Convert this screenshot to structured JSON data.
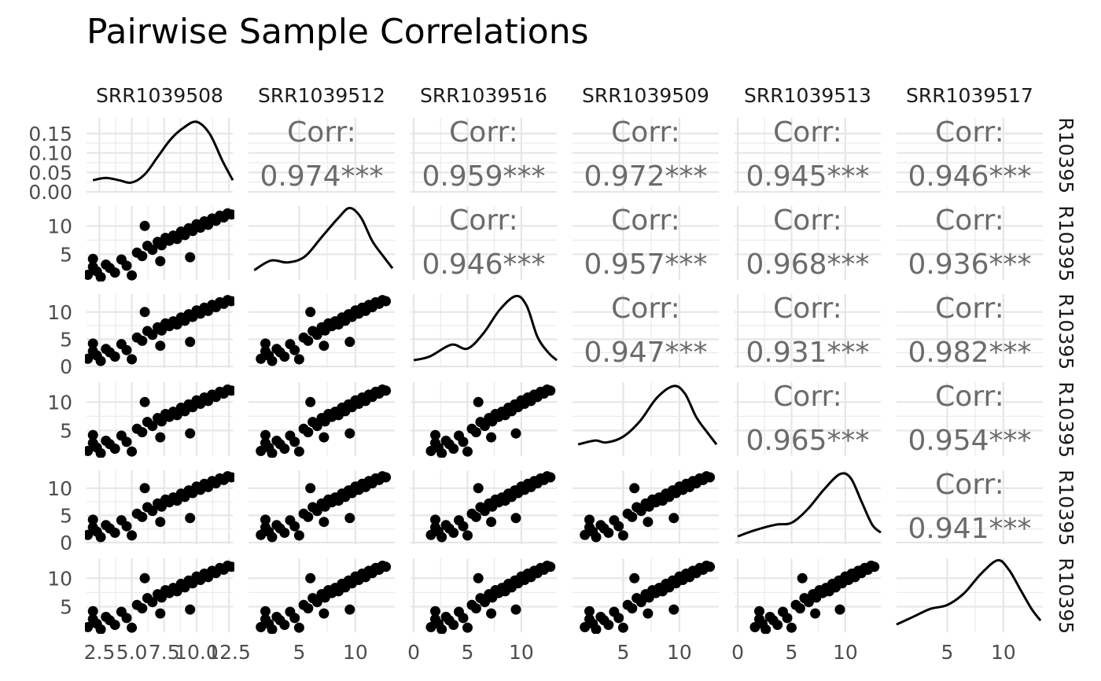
{
  "chart_data": {
    "type": "scatter-matrix",
    "title": "Pairwise Sample Correlations",
    "samples": [
      "SRR1039508",
      "SRR1039512",
      "SRR1039516",
      "SRR1039509",
      "SRR1039513",
      "SRR1039517"
    ],
    "corr_label": "Corr:",
    "correlations": [
      {
        "row": 0,
        "col": 1,
        "value": "0.974***"
      },
      {
        "row": 0,
        "col": 2,
        "value": "0.959***"
      },
      {
        "row": 0,
        "col": 3,
        "value": "0.972***"
      },
      {
        "row": 0,
        "col": 4,
        "value": "0.945***"
      },
      {
        "row": 0,
        "col": 5,
        "value": "0.946***"
      },
      {
        "row": 1,
        "col": 2,
        "value": "0.946***"
      },
      {
        "row": 1,
        "col": 3,
        "value": "0.957***"
      },
      {
        "row": 1,
        "col": 4,
        "value": "0.968***"
      },
      {
        "row": 1,
        "col": 5,
        "value": "0.936***"
      },
      {
        "row": 2,
        "col": 3,
        "value": "0.947***"
      },
      {
        "row": 2,
        "col": 4,
        "value": "0.931***"
      },
      {
        "row": 2,
        "col": 5,
        "value": "0.982***"
      },
      {
        "row": 3,
        "col": 4,
        "value": "0.965***"
      },
      {
        "row": 3,
        "col": 5,
        "value": "0.954***"
      },
      {
        "row": 4,
        "col": 5,
        "value": "0.941***"
      }
    ],
    "ranges": [
      [
        1.5,
        12.8
      ],
      [
        0.5,
        13.5
      ],
      [
        -0.3,
        13.3
      ],
      [
        0.5,
        13.5
      ],
      [
        -0.3,
        13.3
      ],
      [
        0.5,
        13.5
      ]
    ],
    "x_ticks": [
      [
        "2.5",
        "5.0",
        "7.5",
        "10.0",
        "12.5"
      ],
      [
        "5",
        "10"
      ],
      [
        "0",
        "5",
        "10"
      ],
      [
        "5",
        "10"
      ],
      [
        "0",
        "5",
        "10"
      ],
      [
        "5",
        "10"
      ]
    ],
    "x_tick_values": [
      [
        2.5,
        5,
        7.5,
        10,
        12.5
      ],
      [
        5,
        10
      ],
      [
        0,
        5,
        10
      ],
      [
        5,
        10
      ],
      [
        0,
        5,
        10
      ],
      [
        5,
        10
      ]
    ],
    "y_ticks": [
      [
        "0.00",
        "0.05",
        "0.10",
        "0.15"
      ],
      [
        "5",
        "10"
      ],
      [
        "0",
        "5",
        "10"
      ],
      [
        "5",
        "10"
      ],
      [
        "0",
        "5",
        "10"
      ],
      [
        "5",
        "10"
      ]
    ],
    "y_tick_values": [
      [
        0,
        0.05,
        0.1,
        0.15
      ],
      [
        5,
        10
      ],
      [
        0,
        5,
        10
      ],
      [
        5,
        10
      ],
      [
        0,
        5,
        10
      ],
      [
        5,
        10
      ]
    ],
    "density_ylim": [
      0,
      0.19
    ],
    "densities": [
      [
        [
          2.0,
          0.03
        ],
        [
          3.0,
          0.036
        ],
        [
          4.0,
          0.03
        ],
        [
          5.0,
          0.024
        ],
        [
          6.0,
          0.045
        ],
        [
          7.0,
          0.09
        ],
        [
          8.0,
          0.135
        ],
        [
          9.0,
          0.165
        ],
        [
          10.0,
          0.18
        ],
        [
          11.0,
          0.15
        ],
        [
          12.0,
          0.08
        ],
        [
          12.8,
          0.03
        ]
      ],
      [
        [
          1.0,
          0.025
        ],
        [
          2.5,
          0.05
        ],
        [
          4.0,
          0.045
        ],
        [
          5.5,
          0.06
        ],
        [
          7.0,
          0.11
        ],
        [
          8.5,
          0.16
        ],
        [
          9.5,
          0.185
        ],
        [
          10.5,
          0.16
        ],
        [
          11.5,
          0.1
        ],
        [
          12.5,
          0.06
        ],
        [
          13.3,
          0.03
        ]
      ],
      [
        [
          0.0,
          0.02
        ],
        [
          1.5,
          0.03
        ],
        [
          3.5,
          0.06
        ],
        [
          5.0,
          0.05
        ],
        [
          6.5,
          0.09
        ],
        [
          8.0,
          0.15
        ],
        [
          9.5,
          0.185
        ],
        [
          10.5,
          0.16
        ],
        [
          11.5,
          0.08
        ],
        [
          12.5,
          0.04
        ],
        [
          13.3,
          0.02
        ]
      ],
      [
        [
          1.0,
          0.03
        ],
        [
          2.5,
          0.04
        ],
        [
          3.5,
          0.035
        ],
        [
          5.0,
          0.05
        ],
        [
          6.5,
          0.09
        ],
        [
          8.0,
          0.15
        ],
        [
          9.5,
          0.18
        ],
        [
          10.5,
          0.16
        ],
        [
          11.5,
          0.1
        ],
        [
          12.5,
          0.06
        ],
        [
          13.3,
          0.03
        ]
      ],
      [
        [
          0.0,
          0.02
        ],
        [
          1.5,
          0.035
        ],
        [
          3.5,
          0.05
        ],
        [
          5.0,
          0.055
        ],
        [
          6.5,
          0.09
        ],
        [
          8.0,
          0.14
        ],
        [
          9.5,
          0.18
        ],
        [
          10.5,
          0.17
        ],
        [
          11.5,
          0.11
        ],
        [
          12.5,
          0.05
        ],
        [
          13.3,
          0.03
        ]
      ],
      [
        [
          0.5,
          0.02
        ],
        [
          2.0,
          0.04
        ],
        [
          3.5,
          0.06
        ],
        [
          5.0,
          0.07
        ],
        [
          6.5,
          0.1
        ],
        [
          8.0,
          0.15
        ],
        [
          9.5,
          0.185
        ],
        [
          10.5,
          0.16
        ],
        [
          11.5,
          0.11
        ],
        [
          12.5,
          0.06
        ],
        [
          13.3,
          0.03
        ]
      ]
    ],
    "points": [
      [
        1.6,
        1.4
      ],
      [
        2.0,
        2.8
      ],
      [
        2.3,
        2.0
      ],
      [
        2.6,
        1.0
      ],
      [
        3.0,
        3.2
      ],
      [
        3.3,
        2.6
      ],
      [
        3.7,
        1.8
      ],
      [
        4.2,
        4.1
      ],
      [
        4.6,
        3.0
      ],
      [
        5.0,
        1.3
      ],
      [
        5.4,
        5.3
      ],
      [
        5.8,
        4.7
      ],
      [
        6.2,
        6.5
      ],
      [
        6.6,
        5.8
      ],
      [
        7.0,
        7.2
      ],
      [
        7.3,
        6.6
      ],
      [
        7.6,
        7.9
      ],
      [
        7.9,
        7.4
      ],
      [
        8.2,
        8.3
      ],
      [
        8.5,
        7.7
      ],
      [
        8.8,
        9.0
      ],
      [
        9.1,
        8.4
      ],
      [
        9.4,
        9.6
      ],
      [
        9.7,
        9.1
      ],
      [
        10.0,
        10.3
      ],
      [
        10.3,
        9.7
      ],
      [
        10.6,
        10.8
      ],
      [
        10.9,
        10.2
      ],
      [
        11.2,
        11.3
      ],
      [
        11.5,
        10.9
      ],
      [
        11.8,
        11.8
      ],
      [
        12.1,
        11.5
      ],
      [
        12.4,
        12.2
      ],
      [
        12.7,
        12.0
      ],
      [
        6.0,
        10.0
      ],
      [
        9.5,
        4.5
      ],
      [
        2.0,
        4.2
      ],
      [
        7.2,
        3.8
      ]
    ]
  }
}
